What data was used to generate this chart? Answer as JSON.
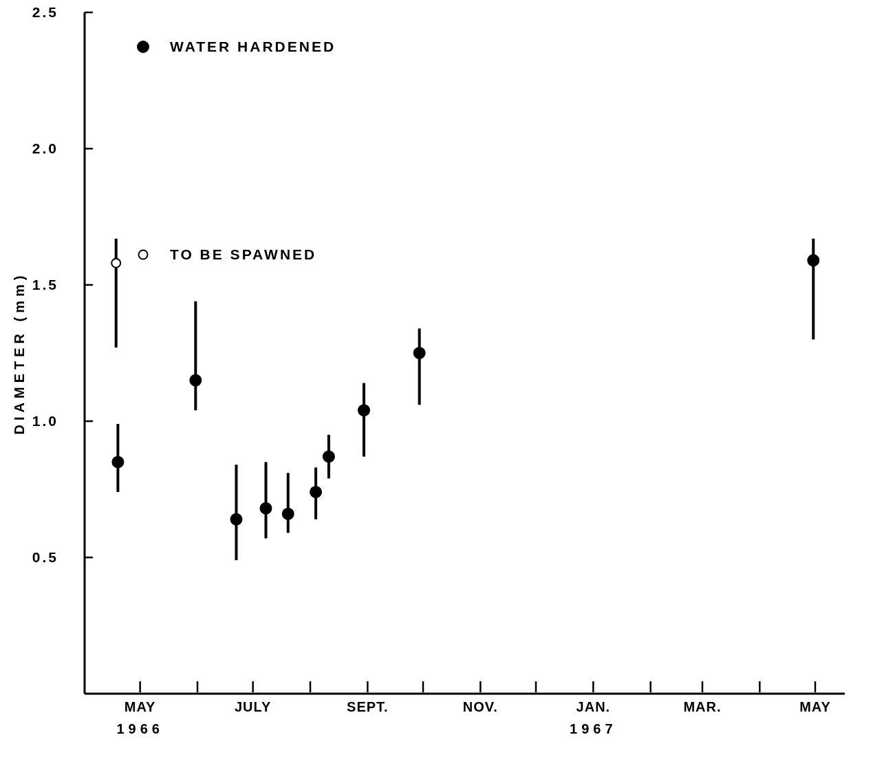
{
  "chart_data": {
    "type": "scatter",
    "ylabel": "DIAMETER (mm)",
    "xlim": [
      "1966-04-01",
      "1967-05-17"
    ],
    "ylim": [
      0,
      2.5
    ],
    "xticks": [
      {
        "value": "1966-05-01",
        "label": "MAY\n1966"
      },
      {
        "value": "1966-06-01",
        "label": null
      },
      {
        "value": "1966-07-01",
        "label": "JULY"
      },
      {
        "value": "1966-08-01",
        "label": null
      },
      {
        "value": "1966-09-01",
        "label": "SEPT."
      },
      {
        "value": "1966-10-01",
        "label": null
      },
      {
        "value": "1966-11-01",
        "label": "NOV."
      },
      {
        "value": "1966-12-01",
        "label": null
      },
      {
        "value": "1967-01-01",
        "label": "JAN.\n1967"
      },
      {
        "value": "1967-02-01",
        "label": null
      },
      {
        "value": "1967-03-01",
        "label": "MAR."
      },
      {
        "value": "1967-04-01",
        "label": null
      },
      {
        "value": "1967-05-01",
        "label": "MAY"
      }
    ],
    "yticks": [
      {
        "value": 0.5,
        "label": "0.5"
      },
      {
        "value": 1,
        "label": "1.0"
      },
      {
        "value": 1.5,
        "label": "1.5"
      },
      {
        "value": 2,
        "label": "2.0"
      },
      {
        "value": 2.5,
        "label": "2.5"
      }
    ],
    "marker": "circle",
    "legend": "top left",
    "series": [
      {
        "name": "WATER HARDENED",
        "color": "#000000",
        "x": [
          "1966-04-19",
          "1966-05-31",
          "1966-06-22",
          "1966-07-08",
          "1966-07-20",
          "1966-08-04",
          "1966-08-11",
          "1966-08-30",
          "1966-09-29",
          "1967-04-30"
        ],
        "values": [
          0.85,
          1.15,
          0.64,
          0.68,
          0.66,
          0.74,
          0.87,
          1.04,
          1.25,
          1.59
        ],
        "errors": [
          [
            0.74,
            0.99
          ],
          [
            1.04,
            1.44
          ],
          [
            0.49,
            0.84
          ],
          [
            0.57,
            0.85
          ],
          [
            0.59,
            0.81
          ],
          [
            0.64,
            0.83
          ],
          [
            0.79,
            0.95
          ],
          [
            0.87,
            1.14
          ],
          [
            1.06,
            1.34
          ],
          [
            1.3,
            1.67
          ]
        ]
      },
      {
        "name": "TO BE SPAWNED",
        "color": "#ffffff",
        "x": [
          "1966-04-18"
        ],
        "values": [
          1.58
        ],
        "errors": [
          [
            1.27,
            1.67
          ]
        ]
      }
    ]
  }
}
